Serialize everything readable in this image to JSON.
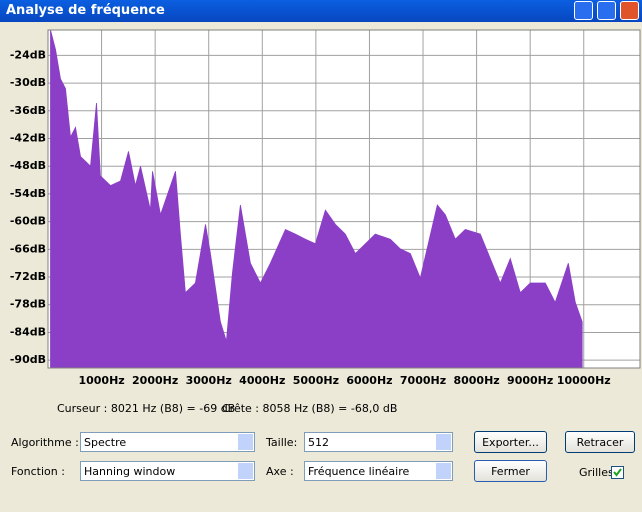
{
  "window": {
    "title": "Analyse de fréquence"
  },
  "chart_data": {
    "type": "area",
    "x": [
      47,
      140,
      233,
      326,
      420,
      513,
      606,
      793,
      905,
      979,
      1166,
      1353,
      1502,
      1632,
      1726,
      1912,
      1950,
      2099,
      2379,
      2472,
      2565,
      2752,
      2939,
      3032,
      3218,
      3330,
      3442,
      3591,
      3778,
      3965,
      4151,
      4431,
      4618,
      4804,
      4991,
      5177,
      5364,
      5550,
      5737,
      5924,
      6110,
      6390,
      6576,
      6763,
      6950,
      7267,
      7416,
      7603,
      7789,
      8069,
      8256,
      8442,
      8629,
      8815,
      9002,
      9282,
      9468,
      9711,
      9842,
      9972
    ],
    "values": [
      -18.5,
      -22.7,
      -29.1,
      -31.2,
      -41.7,
      -39.6,
      -45.9,
      -48.0,
      -34.3,
      -50.1,
      -52.2,
      -51.2,
      -44.8,
      -52.2,
      -48.0,
      -57.5,
      -49.1,
      -58.5,
      -49.1,
      -62.7,
      -75.4,
      -73.3,
      -60.6,
      -66.9,
      -81.7,
      -85.9,
      -71.2,
      -56.4,
      -69.0,
      -73.3,
      -69.0,
      -61.7,
      -62.7,
      -63.8,
      -64.8,
      -57.5,
      -60.6,
      -62.7,
      -66.9,
      -64.8,
      -62.7,
      -63.8,
      -65.9,
      -66.9,
      -72.2,
      -56.4,
      -58.5,
      -63.8,
      -61.7,
      -62.7,
      -68.0,
      -73.3,
      -68.0,
      -75.4,
      -73.3,
      -73.3,
      -77.5,
      -69.0,
      -77.5,
      -81.7
    ],
    "color": "#8b3fc6",
    "xlim": [
      0,
      11050
    ],
    "ylim": [
      -91.7,
      -18.5
    ],
    "xticks": [
      {
        "value": 1000,
        "label": "1000Hz"
      },
      {
        "value": 2000,
        "label": "2000Hz"
      },
      {
        "value": 3000,
        "label": "3000Hz"
      },
      {
        "value": 4000,
        "label": "4000Hz"
      },
      {
        "value": 5000,
        "label": "5000Hz"
      },
      {
        "value": 6000,
        "label": "6000Hz"
      },
      {
        "value": 7000,
        "label": "7000Hz"
      },
      {
        "value": 8000,
        "label": "8000Hz"
      },
      {
        "value": 9000,
        "label": "9000Hz"
      },
      {
        "value": 10000,
        "label": "10000Hz"
      }
    ],
    "yticks": [
      {
        "value": -24,
        "label": "-24dB"
      },
      {
        "value": -30,
        "label": "-30dB"
      },
      {
        "value": -36,
        "label": "-36dB"
      },
      {
        "value": -42,
        "label": "-42dB"
      },
      {
        "value": -48,
        "label": "-48dB"
      },
      {
        "value": -54,
        "label": "-54dB"
      },
      {
        "value": -60,
        "label": "-60dB"
      },
      {
        "value": -66,
        "label": "-66dB"
      },
      {
        "value": -72,
        "label": "-72dB"
      },
      {
        "value": -78,
        "label": "-78dB"
      },
      {
        "value": -84,
        "label": "-84dB"
      },
      {
        "value": -90,
        "label": "-90dB"
      }
    ],
    "grid": true
  },
  "status": {
    "cursor": "Curseur : 8021 Hz (B8) = -69 dB",
    "peak": "Crête : 8058 Hz (B8) = -68,0 dB"
  },
  "controls": {
    "algorithm_label": "Algorithme :",
    "algorithm": "Spectre",
    "size_label": "Taille:",
    "size": "512",
    "export": "Exporter...",
    "redraw": "Retracer",
    "function_label": "Fonction :",
    "function": "Hanning window",
    "axis_label": "Axe :",
    "axis": "Fréquence linéaire",
    "close": "Fermer",
    "grids_label": "Grilles",
    "grids_checked": true
  }
}
